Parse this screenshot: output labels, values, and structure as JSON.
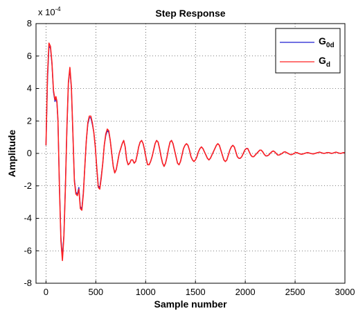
{
  "chart_data": {
    "type": "line",
    "title": "Step Response",
    "xlabel": "Sample number",
    "ylabel": "Amplitude",
    "y_exponent": {
      "base": "x 10",
      "power": "-4"
    },
    "xlim": [
      -100,
      3000
    ],
    "ylim": [
      -8,
      8
    ],
    "x_ticks": [
      "0",
      "500",
      "1000",
      "1500",
      "2000",
      "2500",
      "3000"
    ],
    "y_ticks": [
      "-8",
      "-6",
      "-4",
      "-2",
      "0",
      "2",
      "4",
      "6",
      "8"
    ],
    "grid": true,
    "legend_position": "top-right",
    "legend": [
      {
        "main": "G",
        "sub": "0d",
        "color": "#1c1cd0"
      },
      {
        "main": "G",
        "sub": "d",
        "color": "#ff2020"
      }
    ],
    "series": [
      {
        "name": "G0d",
        "color": "#1c1cd0",
        "x": [
          0,
          15,
          30,
          45,
          60,
          75,
          90,
          100,
          110,
          120,
          135,
          150,
          165,
          180,
          195,
          210,
          225,
          240,
          255,
          270,
          285,
          300,
          315,
          330,
          345,
          360,
          375,
          390,
          405,
          420,
          435,
          450,
          465,
          480,
          495,
          510,
          525,
          540,
          555,
          570,
          585,
          600,
          615,
          630,
          645,
          660,
          675,
          690,
          705,
          720,
          735,
          750,
          765,
          780,
          795,
          810,
          825,
          840,
          855,
          870,
          885,
          900,
          915,
          930,
          945,
          960,
          975,
          990,
          1005,
          1020,
          1035,
          1050,
          1065,
          1080,
          1095,
          1110,
          1125,
          1140,
          1155,
          1170,
          1185,
          1200,
          1215,
          1230,
          1245,
          1260,
          1275,
          1290,
          1305,
          1320,
          1335,
          1350,
          1365,
          1380,
          1395,
          1410,
          1425,
          1440,
          1455,
          1470,
          1485,
          1500,
          1515,
          1530,
          1545,
          1560,
          1575,
          1590,
          1605,
          1620,
          1635,
          1650,
          1665,
          1680,
          1695,
          1710,
          1725,
          1740,
          1755,
          1770,
          1785,
          1800,
          1815,
          1830,
          1845,
          1860,
          1875,
          1890,
          1905,
          1920,
          1935,
          1950,
          1965,
          1980,
          1995,
          2010,
          2025,
          2040,
          2055,
          2070,
          2085,
          2100,
          2115,
          2130,
          2145,
          2160,
          2175,
          2190,
          2205,
          2220,
          2235,
          2250,
          2265,
          2280,
          2295,
          2310,
          2325,
          2340,
          2355,
          2370,
          2385,
          2400,
          2415,
          2430,
          2445,
          2460,
          2475,
          2490,
          2505,
          2520,
          2535,
          2550,
          2565,
          2580,
          2595,
          2610,
          2625,
          2640,
          2655,
          2670,
          2685,
          2700,
          2715,
          2730,
          2745,
          2760,
          2775,
          2790,
          2805,
          2820,
          2835,
          2850,
          2865,
          2880,
          2895,
          2910,
          2925,
          2940,
          2955,
          2970,
          2985,
          3000
        ],
        "y": [
          0.5,
          4.5,
          6.6,
          6.5,
          5.5,
          3.8,
          3.2,
          3.4,
          3.1,
          2.0,
          -2.0,
          -5.2,
          -6.4,
          -5.0,
          -2.0,
          1.5,
          4.3,
          5.2,
          4.0,
          1.2,
          -1.6,
          -2.4,
          -2.5,
          -2.1,
          -3.3,
          -3.4,
          -2.4,
          -0.8,
          0.8,
          1.8,
          2.2,
          2.2,
          1.8,
          1.3,
          0.4,
          -0.9,
          -2.0,
          -2.1,
          -1.4,
          -0.6,
          0.5,
          1.1,
          1.4,
          1.3,
          0.8,
          0.0,
          -0.8,
          -1.2,
          -1.0,
          -0.5,
          0.0,
          0.3,
          0.6,
          0.8,
          0.4,
          -0.4,
          -0.7,
          -0.6,
          -0.4,
          -0.4,
          -0.6,
          -0.5,
          -0.1,
          0.4,
          0.7,
          0.8,
          0.6,
          0.2,
          -0.3,
          -0.7,
          -0.7,
          -0.5,
          -0.2,
          0.2,
          0.6,
          0.8,
          0.7,
          0.3,
          -0.2,
          -0.6,
          -0.8,
          -0.6,
          -0.2,
          0.3,
          0.7,
          0.8,
          0.6,
          0.2,
          -0.2,
          -0.6,
          -0.7,
          -0.5,
          -0.1,
          0.3,
          0.5,
          0.6,
          0.5,
          0.2,
          -0.2,
          -0.4,
          -0.5,
          -0.4,
          -0.2,
          0.1,
          0.3,
          0.4,
          0.3,
          0.1,
          -0.1,
          -0.3,
          -0.4,
          -0.3,
          -0.1,
          0.1,
          0.3,
          0.5,
          0.6,
          0.5,
          0.2,
          -0.1,
          -0.4,
          -0.5,
          -0.4,
          -0.1,
          0.2,
          0.4,
          0.5,
          0.4,
          0.1,
          -0.2,
          -0.3,
          -0.3,
          -0.2,
          0.0,
          0.2,
          0.3,
          0.3,
          0.1,
          -0.1,
          -0.2,
          -0.2,
          -0.1,
          0.0,
          0.1,
          0.2,
          0.2,
          0.1,
          -0.05,
          -0.15,
          -0.15,
          -0.1,
          0.0,
          0.1,
          0.15,
          0.1,
          0.0,
          -0.1,
          -0.1,
          -0.05,
          0.0,
          0.08,
          0.1,
          0.05,
          0.0,
          -0.05,
          -0.08,
          -0.05,
          0.0,
          0.05,
          0.05,
          0.0,
          -0.03,
          -0.05,
          -0.03,
          0.0,
          0.03,
          0.05,
          0.03,
          0.0,
          -0.02,
          -0.03,
          0.0,
          0.03,
          0.05,
          0.08,
          0.05,
          0.02,
          0.0,
          0.02,
          0.05,
          0.05,
          0.03,
          0.0,
          0.02,
          0.05,
          0.08,
          0.05,
          0.02,
          0.0,
          0.02,
          0.05,
          0.03
        ]
      },
      {
        "name": "Gd",
        "color": "#ff2020",
        "x": [
          0,
          15,
          30,
          45,
          60,
          75,
          90,
          100,
          110,
          120,
          135,
          150,
          165,
          180,
          195,
          210,
          225,
          240,
          255,
          270,
          285,
          300,
          315,
          330,
          345,
          360,
          375,
          390,
          405,
          420,
          435,
          450,
          465,
          480,
          495,
          510,
          525,
          540,
          555,
          570,
          585,
          600,
          615,
          630,
          645,
          660,
          675,
          690,
          705,
          720,
          735,
          750,
          765,
          780,
          795,
          810,
          825,
          840,
          855,
          870,
          885,
          900,
          915,
          930,
          945,
          960,
          975,
          990,
          1005,
          1020,
          1035,
          1050,
          1065,
          1080,
          1095,
          1110,
          1125,
          1140,
          1155,
          1170,
          1185,
          1200,
          1215,
          1230,
          1245,
          1260,
          1275,
          1290,
          1305,
          1320,
          1335,
          1350,
          1365,
          1380,
          1395,
          1410,
          1425,
          1440,
          1455,
          1470,
          1485,
          1500,
          1515,
          1530,
          1545,
          1560,
          1575,
          1590,
          1605,
          1620,
          1635,
          1650,
          1665,
          1680,
          1695,
          1710,
          1725,
          1740,
          1755,
          1770,
          1785,
          1800,
          1815,
          1830,
          1845,
          1860,
          1875,
          1890,
          1905,
          1920,
          1935,
          1950,
          1965,
          1980,
          1995,
          2010,
          2025,
          2040,
          2055,
          2070,
          2085,
          2100,
          2115,
          2130,
          2145,
          2160,
          2175,
          2190,
          2205,
          2220,
          2235,
          2250,
          2265,
          2280,
          2295,
          2310,
          2325,
          2340,
          2355,
          2370,
          2385,
          2400,
          2415,
          2430,
          2445,
          2460,
          2475,
          2490,
          2505,
          2520,
          2535,
          2550,
          2565,
          2580,
          2595,
          2610,
          2625,
          2640,
          2655,
          2670,
          2685,
          2700,
          2715,
          2730,
          2745,
          2760,
          2775,
          2790,
          2805,
          2820,
          2835,
          2850,
          2865,
          2880,
          2895,
          2910,
          2925,
          2940,
          2955,
          2970,
          2985,
          3000
        ],
        "y": [
          0.5,
          4.8,
          6.8,
          6.6,
          5.6,
          3.9,
          3.3,
          3.5,
          3.2,
          2.1,
          -2.1,
          -5.4,
          -6.6,
          -5.1,
          -2.1,
          1.6,
          4.4,
          5.3,
          4.1,
          1.3,
          -1.7,
          -2.5,
          -2.6,
          -2.2,
          -3.4,
          -3.5,
          -2.5,
          -0.8,
          0.8,
          1.9,
          2.3,
          2.3,
          1.9,
          1.3,
          0.4,
          -0.9,
          -2.1,
          -2.2,
          -1.5,
          -0.6,
          0.5,
          1.2,
          1.5,
          1.4,
          0.8,
          0.0,
          -0.8,
          -1.2,
          -1.0,
          -0.5,
          0.0,
          0.3,
          0.6,
          0.8,
          0.4,
          -0.4,
          -0.7,
          -0.6,
          -0.4,
          -0.4,
          -0.6,
          -0.5,
          -0.1,
          0.4,
          0.7,
          0.8,
          0.6,
          0.2,
          -0.3,
          -0.7,
          -0.7,
          -0.5,
          -0.2,
          0.2,
          0.6,
          0.8,
          0.7,
          0.3,
          -0.2,
          -0.6,
          -0.8,
          -0.6,
          -0.2,
          0.3,
          0.7,
          0.8,
          0.6,
          0.2,
          -0.2,
          -0.6,
          -0.7,
          -0.5,
          -0.1,
          0.3,
          0.5,
          0.6,
          0.5,
          0.2,
          -0.2,
          -0.4,
          -0.5,
          -0.4,
          -0.2,
          0.1,
          0.3,
          0.4,
          0.3,
          0.1,
          -0.1,
          -0.3,
          -0.4,
          -0.3,
          -0.1,
          0.1,
          0.3,
          0.5,
          0.6,
          0.5,
          0.2,
          -0.1,
          -0.4,
          -0.5,
          -0.4,
          -0.1,
          0.2,
          0.4,
          0.5,
          0.4,
          0.1,
          -0.2,
          -0.3,
          -0.3,
          -0.2,
          0.0,
          0.2,
          0.3,
          0.3,
          0.1,
          -0.1,
          -0.2,
          -0.2,
          -0.1,
          0.0,
          0.1,
          0.2,
          0.2,
          0.1,
          -0.05,
          -0.15,
          -0.15,
          -0.1,
          0.0,
          0.1,
          0.15,
          0.1,
          0.0,
          -0.1,
          -0.1,
          -0.05,
          0.0,
          0.08,
          0.1,
          0.05,
          0.0,
          -0.05,
          -0.08,
          -0.05,
          0.0,
          0.05,
          0.05,
          0.0,
          -0.03,
          -0.05,
          -0.03,
          0.0,
          0.03,
          0.05,
          0.03,
          0.0,
          -0.02,
          -0.03,
          0.0,
          0.03,
          0.05,
          0.08,
          0.05,
          0.02,
          0.0,
          0.02,
          0.05,
          0.05,
          0.03,
          0.0,
          0.02,
          0.05,
          0.08,
          0.05,
          0.02,
          0.0,
          0.02,
          0.05,
          0.03
        ]
      }
    ]
  }
}
